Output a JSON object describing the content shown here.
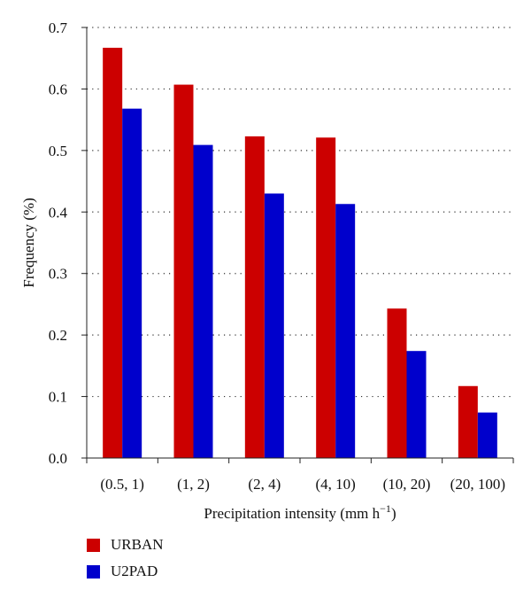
{
  "chart_data": {
    "type": "bar",
    "title": "",
    "xlabel": "Precipitation intensity (mm h",
    "xlabel_superscript": "−1",
    "xlabel_suffix": ")",
    "ylabel": "Frequency (%)",
    "ylim": [
      0,
      0.7
    ],
    "yticks": [
      "0.0",
      "0.1",
      "0.2",
      "0.3",
      "0.4",
      "0.5",
      "0.6",
      "0.7"
    ],
    "categories": [
      "(0.5, 1)",
      "(1, 2)",
      "(2, 4)",
      "(4, 10)",
      "(10, 20)",
      "(20, 100)"
    ],
    "grid": "horizontal dotted",
    "legend_position": "bottom-left",
    "series": [
      {
        "name": "URBAN",
        "color": "#cc0000",
        "values": [
          0.667,
          0.607,
          0.523,
          0.521,
          0.243,
          0.117
        ]
      },
      {
        "name": "U2PAD",
        "color": "#0000cc",
        "values": [
          0.568,
          0.509,
          0.43,
          0.413,
          0.174,
          0.074
        ]
      }
    ]
  }
}
